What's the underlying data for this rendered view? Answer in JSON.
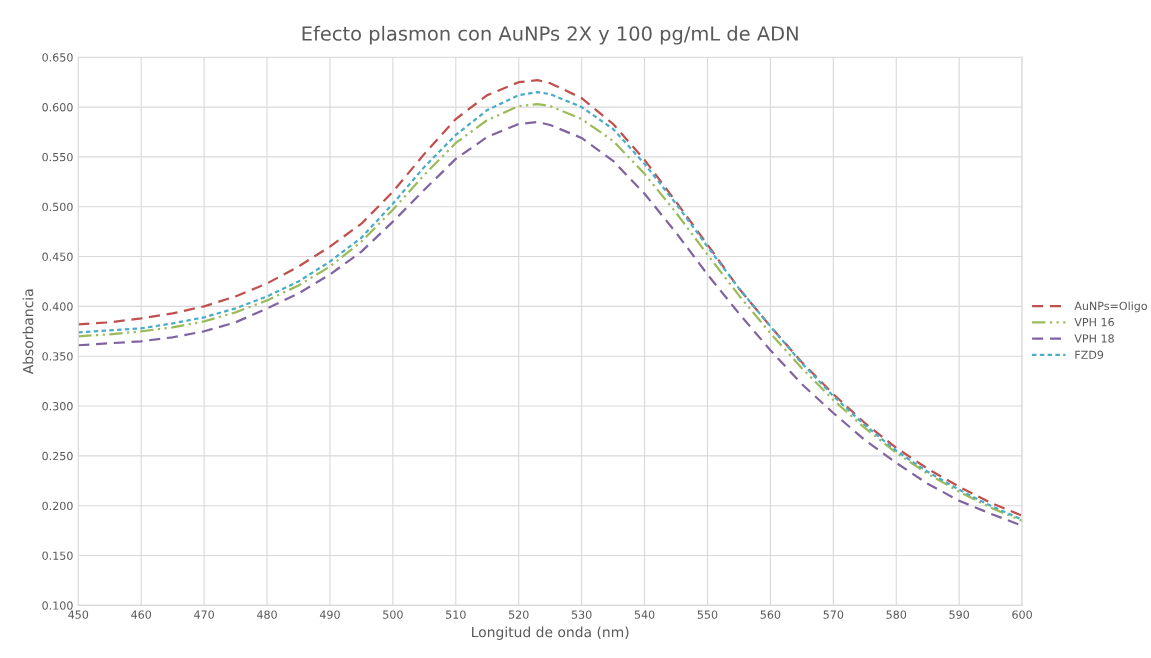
{
  "chart_data": {
    "type": "line",
    "title": "Efecto plasmon con AuNPs 2X y 100 pg/mL de ADN",
    "xlabel": "Longitud de onda (nm)",
    "ylabel": "Absorbancia",
    "x": [
      450,
      455,
      460,
      465,
      470,
      475,
      480,
      485,
      490,
      495,
      500,
      505,
      510,
      515,
      520,
      523,
      525,
      530,
      535,
      540,
      545,
      550,
      555,
      560,
      565,
      570,
      575,
      580,
      585,
      590,
      595,
      600
    ],
    "series": [
      {
        "name": "AuNPs=Oligo",
        "color": "#c0504d",
        "line_style": "dashed",
        "values": [
          0.382,
          0.384,
          0.388,
          0.393,
          0.4,
          0.41,
          0.423,
          0.44,
          0.46,
          0.483,
          0.515,
          0.553,
          0.588,
          0.612,
          0.625,
          0.627,
          0.624,
          0.609,
          0.583,
          0.547,
          0.505,
          0.462,
          0.418,
          0.38,
          0.344,
          0.312,
          0.283,
          0.258,
          0.237,
          0.219,
          0.203,
          0.19
        ]
      },
      {
        "name": "VPH 16",
        "color": "#9bbb59",
        "line_style": "dashdot",
        "values": [
          0.37,
          0.372,
          0.375,
          0.379,
          0.385,
          0.394,
          0.406,
          0.421,
          0.44,
          0.465,
          0.497,
          0.532,
          0.564,
          0.587,
          0.601,
          0.603,
          0.601,
          0.588,
          0.566,
          0.533,
          0.494,
          0.452,
          0.411,
          0.373,
          0.338,
          0.306,
          0.278,
          0.253,
          0.232,
          0.214,
          0.198,
          0.185
        ]
      },
      {
        "name": "VPH 18",
        "color": "#8064a2",
        "line_style": "dashed",
        "values": [
          0.361,
          0.363,
          0.365,
          0.369,
          0.375,
          0.384,
          0.398,
          0.413,
          0.432,
          0.455,
          0.485,
          0.517,
          0.548,
          0.57,
          0.583,
          0.585,
          0.582,
          0.569,
          0.546,
          0.513,
          0.474,
          0.432,
          0.393,
          0.356,
          0.322,
          0.293,
          0.266,
          0.243,
          0.222,
          0.205,
          0.192,
          0.18
        ]
      },
      {
        "name": "FZD9",
        "color": "#4bacc6",
        "line_style": "dotted",
        "values": [
          0.374,
          0.376,
          0.378,
          0.383,
          0.389,
          0.398,
          0.41,
          0.425,
          0.445,
          0.469,
          0.503,
          0.54,
          0.572,
          0.597,
          0.612,
          0.615,
          0.613,
          0.6,
          0.578,
          0.543,
          0.503,
          0.46,
          0.418,
          0.38,
          0.343,
          0.31,
          0.281,
          0.255,
          0.234,
          0.216,
          0.2,
          0.186
        ]
      }
    ],
    "xlim": [
      450,
      600
    ],
    "xticks": [
      450,
      460,
      470,
      480,
      490,
      500,
      510,
      520,
      530,
      540,
      550,
      560,
      570,
      580,
      590,
      600
    ],
    "ylim": [
      0.1,
      0.65
    ],
    "yticks": [
      {
        "value": 0.1,
        "label": "0.100"
      },
      {
        "value": 0.15,
        "label": "0.150"
      },
      {
        "value": 0.2,
        "label": "0.200"
      },
      {
        "value": 0.25,
        "label": "0.250"
      },
      {
        "value": 0.3,
        "label": "0.300"
      },
      {
        "value": 0.35,
        "label": "0.350"
      },
      {
        "value": 0.4,
        "label": "0.400"
      },
      {
        "value": 0.45,
        "label": "0.450"
      },
      {
        "value": 0.5,
        "label": "0.500"
      },
      {
        "value": 0.55,
        "label": "0.550"
      },
      {
        "value": 0.6,
        "label": "0.600"
      },
      {
        "value": 0.65,
        "label": "0.650"
      }
    ],
    "grid": true,
    "legend": "right",
    "marker": "none"
  }
}
